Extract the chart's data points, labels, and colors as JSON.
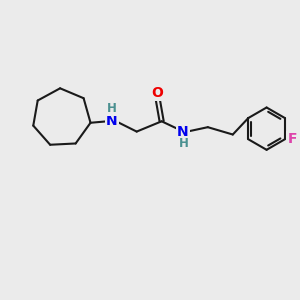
{
  "background_color": "#ebebeb",
  "bond_color": "#1a1a1a",
  "bond_width": 1.5,
  "atom_colors": {
    "N": "#0000ee",
    "O": "#ee0000",
    "F": "#dd44aa",
    "H": "#4a9090",
    "C": "#1a1a1a"
  },
  "font_size_atom": 10,
  "font_size_H": 8.5,
  "figsize": [
    3.0,
    3.0
  ],
  "dpi": 100,
  "xlim": [
    0,
    10
  ],
  "ylim": [
    0,
    10
  ]
}
